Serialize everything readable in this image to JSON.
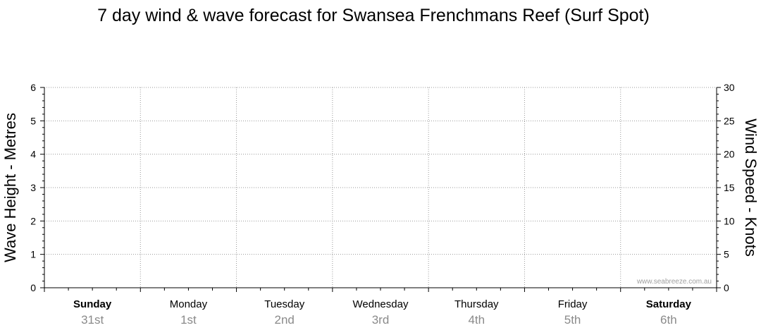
{
  "chart_data": {
    "type": "line",
    "title": "7 day wind & wave forecast for Swansea Frenchmans Reef (Surf Spot)",
    "ylabel": "Wave Height - Metres",
    "y2label": "Wind Speed - Knots",
    "ylim": [
      0,
      6
    ],
    "y2lim": [
      0,
      30
    ],
    "yticks": [
      "0",
      "1",
      "2",
      "3",
      "4",
      "5",
      "6"
    ],
    "y2ticks": [
      "0",
      "5",
      "10",
      "15",
      "20",
      "25",
      "30"
    ],
    "grid": true,
    "categories": [
      {
        "day": "Sunday",
        "date": "31st",
        "bold": true
      },
      {
        "day": "Monday",
        "date": "1st",
        "bold": false
      },
      {
        "day": "Tuesday",
        "date": "2nd",
        "bold": false
      },
      {
        "day": "Wednesday",
        "date": "3rd",
        "bold": false
      },
      {
        "day": "Thursday",
        "date": "4th",
        "bold": false
      },
      {
        "day": "Friday",
        "date": "5th",
        "bold": false
      },
      {
        "day": "Saturday",
        "date": "6th",
        "bold": true
      }
    ],
    "series": []
  },
  "watermark": "www.seabreeze.com.au",
  "colors": {
    "grid": "#999999",
    "axis": "#000000",
    "date_text": "#8a8a8a"
  }
}
